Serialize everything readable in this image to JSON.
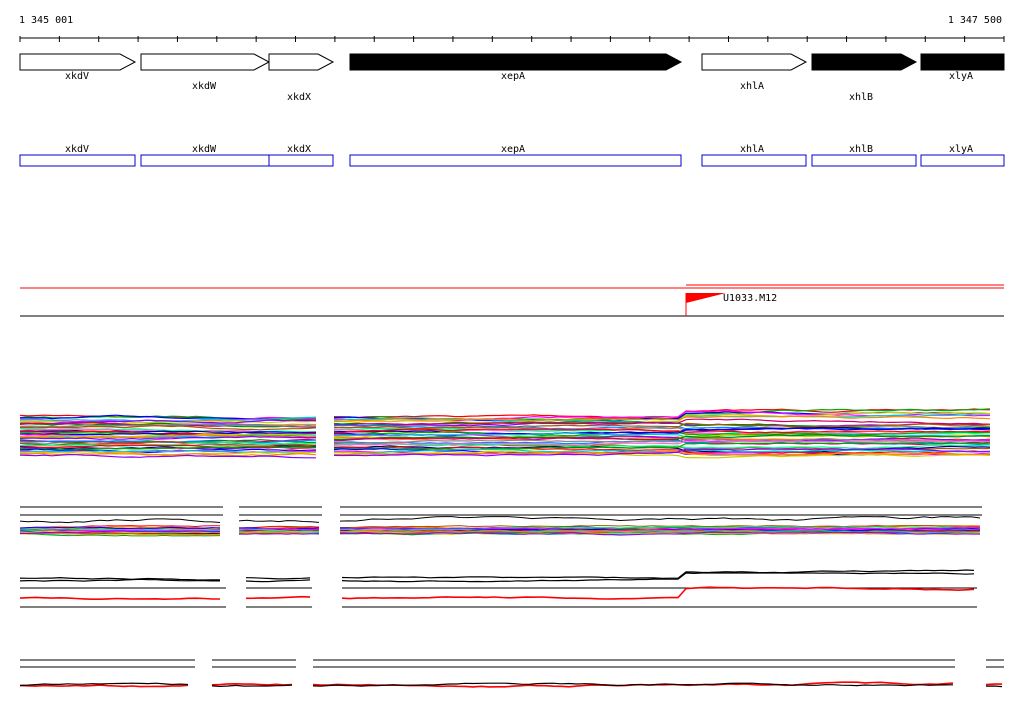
{
  "region": {
    "start_label": "1 345 001",
    "end_label": "1 347 500"
  },
  "genes": [
    {
      "name": "xkdV",
      "strand": "forward",
      "filled": false
    },
    {
      "name": "xkdW",
      "strand": "forward",
      "filled": false
    },
    {
      "name": "xkdX",
      "strand": "forward",
      "filled": false
    },
    {
      "name": "xepA",
      "strand": "forward",
      "filled": true
    },
    {
      "name": "xhlA",
      "strand": "forward",
      "filled": false
    },
    {
      "name": "xhlB",
      "strand": "forward",
      "filled": true
    },
    {
      "name": "xlyA",
      "strand": "forward",
      "filled": true
    }
  ],
  "transcripts": [
    {
      "name": "xkdV"
    },
    {
      "name": "xkdW"
    },
    {
      "name": "xkdX"
    },
    {
      "name": "xepA"
    },
    {
      "name": "xhlA"
    },
    {
      "name": "xhlB"
    },
    {
      "name": "xlyA"
    }
  ],
  "promoter": {
    "name": "U1033.M12",
    "color": "#ff0000"
  },
  "colors": {
    "gene_fill": "#000000",
    "transcript_box": "#0000cc",
    "promoter_line": "#ff0000",
    "highlight_series": "#ff0000"
  }
}
